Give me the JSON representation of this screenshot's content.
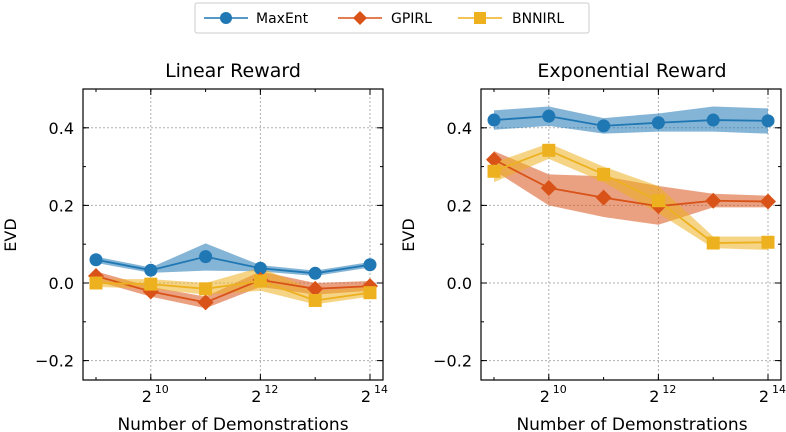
{
  "legend": {
    "items": [
      {
        "label": "MaxEnt",
        "color": "#1f77b4",
        "marker": "circle"
      },
      {
        "label": "GPIRL",
        "color": "#d95319",
        "marker": "diamond"
      },
      {
        "label": "BNNIRL",
        "color": "#edb120",
        "marker": "square"
      }
    ]
  },
  "chart_data": [
    {
      "type": "line",
      "title": "Linear Reward",
      "xlabel": "Number of Demonstrations",
      "ylabel": "EVD",
      "x_scale": "log2",
      "x": [
        512,
        1024,
        2048,
        4096,
        8192,
        16384
      ],
      "xticks": [
        1024,
        4096,
        16384
      ],
      "xtick_base": "2",
      "xtick_exps": [
        "10",
        "12",
        "14"
      ],
      "ylim": [
        -0.25,
        0.5
      ],
      "yticks": [
        -0.2,
        0.0,
        0.2,
        0.4
      ],
      "ytick_labels": [
        "−0.2",
        "0.0",
        "0.2",
        "0.4"
      ],
      "grid": true,
      "series": [
        {
          "name": "MaxEnt",
          "values": [
            0.06,
            0.033,
            0.068,
            0.038,
            0.025,
            0.047
          ],
          "lower": [
            0.052,
            0.026,
            0.032,
            0.03,
            0.018,
            0.04
          ],
          "upper": [
            0.068,
            0.04,
            0.102,
            0.046,
            0.032,
            0.054
          ]
        },
        {
          "name": "GPIRL",
          "values": [
            0.018,
            -0.022,
            -0.05,
            0.008,
            -0.015,
            -0.008
          ],
          "lower": [
            0.005,
            -0.035,
            -0.065,
            -0.01,
            -0.03,
            -0.02
          ],
          "upper": [
            0.03,
            -0.01,
            -0.035,
            0.03,
            0.0,
            0.005
          ]
        },
        {
          "name": "BNNIRL",
          "values": [
            0.0,
            -0.003,
            -0.015,
            0.005,
            -0.045,
            -0.025
          ],
          "lower": [
            -0.01,
            -0.015,
            -0.03,
            -0.02,
            -0.055,
            -0.035
          ],
          "upper": [
            0.01,
            0.01,
            0.0,
            0.04,
            -0.02,
            -0.01
          ]
        }
      ]
    },
    {
      "type": "line",
      "title": "Exponential Reward",
      "xlabel": "Number of Demonstrations",
      "ylabel": "EVD",
      "x_scale": "log2",
      "x": [
        512,
        1024,
        2048,
        4096,
        8192,
        16384
      ],
      "xticks": [
        1024,
        4096,
        16384
      ],
      "xtick_base": "2",
      "xtick_exps": [
        "10",
        "12",
        "14"
      ],
      "ylim": [
        -0.25,
        0.5
      ],
      "yticks": [
        -0.2,
        0.0,
        0.2,
        0.4
      ],
      "ytick_labels": [
        "−0.2",
        "0.0",
        "0.2",
        "0.4"
      ],
      "grid": true,
      "series": [
        {
          "name": "MaxEnt",
          "values": [
            0.42,
            0.43,
            0.405,
            0.413,
            0.42,
            0.418
          ],
          "lower": [
            0.395,
            0.405,
            0.385,
            0.39,
            0.39,
            0.385
          ],
          "upper": [
            0.445,
            0.455,
            0.425,
            0.437,
            0.455,
            0.45
          ]
        },
        {
          "name": "GPIRL",
          "values": [
            0.318,
            0.245,
            0.22,
            0.198,
            0.212,
            0.21
          ],
          "lower": [
            0.29,
            0.2,
            0.17,
            0.15,
            0.195,
            0.195
          ],
          "upper": [
            0.34,
            0.28,
            0.275,
            0.25,
            0.23,
            0.225
          ]
        },
        {
          "name": "BNNIRL",
          "values": [
            0.288,
            0.342,
            0.28,
            0.212,
            0.103,
            0.105
          ],
          "lower": [
            0.26,
            0.32,
            0.26,
            0.18,
            0.09,
            0.085
          ],
          "upper": [
            0.31,
            0.36,
            0.3,
            0.25,
            0.12,
            0.12
          ]
        }
      ]
    }
  ]
}
